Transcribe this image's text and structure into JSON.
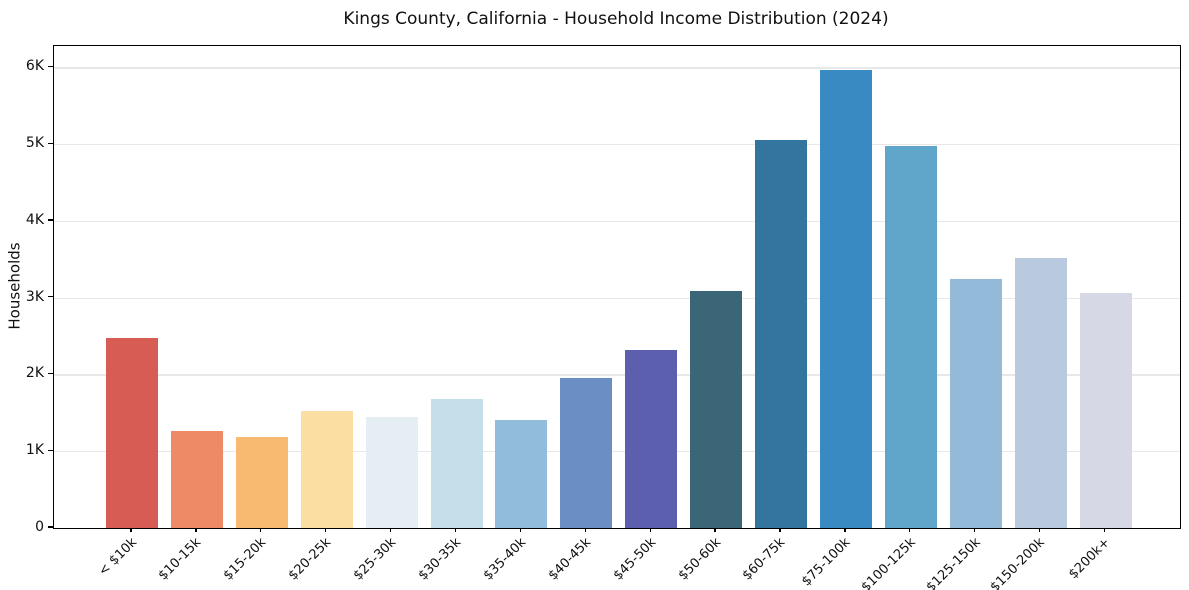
{
  "chart_data": {
    "type": "bar",
    "title": "Kings County, California - Household Income Distribution (2024)",
    "xlabel": "",
    "ylabel": "Households",
    "categories": [
      "< $10k",
      "$10-15k",
      "$15-20k",
      "$20-25k",
      "$25-30k",
      "$30-35k",
      "$35-40k",
      "$40-45k",
      "$45-50k",
      "$50-60k",
      "$60-75k",
      "$75-100k",
      "$100-125k",
      "$125-150k",
      "$150-200k",
      "$200k+"
    ],
    "values": [
      2470,
      1260,
      1190,
      1520,
      1440,
      1680,
      1410,
      1950,
      2320,
      3090,
      5060,
      5970,
      4980,
      3240,
      3520,
      3060
    ],
    "bar_colors": [
      "#d75c53",
      "#ef8a66",
      "#f8ba70",
      "#fbdfa2",
      "#e5eff3",
      "#c4dfea",
      "#92bcdb",
      "#6b8fc5",
      "#5b5fae",
      "#3a6678",
      "#33759e",
      "#398ac2",
      "#60a6ca",
      "#94bad9",
      "#b9cade",
      "#d6d8e5"
    ],
    "ytick_labels": [
      "0",
      "1K",
      "2K",
      "3K",
      "4K",
      "5K",
      "6K"
    ],
    "ytick_values": [
      0,
      1000,
      2000,
      3000,
      4000,
      5000,
      6000
    ],
    "ylim": [
      0,
      6280
    ],
    "grid": "horizontal",
    "gridline_color": "#e8e8ea",
    "spine_color": "#000000",
    "background": "#ffffff",
    "legend": null
  }
}
